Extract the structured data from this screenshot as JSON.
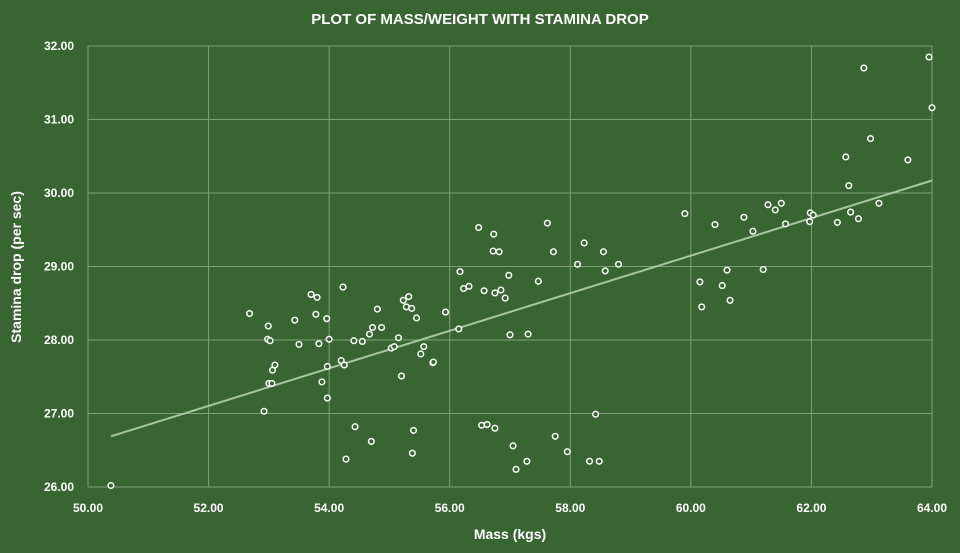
{
  "chart_data": {
    "type": "scatter",
    "title": "PLOT OF MASS/WEIGHT WITH STAMINA DROP",
    "xlabel": "Mass (kgs)",
    "ylabel": "Stamina drop (per sec)",
    "xlim": [
      50,
      64
    ],
    "ylim": [
      26,
      32
    ],
    "x_ticks": [
      "50.00",
      "52.00",
      "54.00",
      "56.00",
      "58.00",
      "60.00",
      "62.00",
      "64.00"
    ],
    "y_ticks": [
      "26.00",
      "27.00",
      "28.00",
      "29.00",
      "30.00",
      "31.00",
      "32.00"
    ],
    "grid": true,
    "legend": "none",
    "trendline": {
      "type": "linear",
      "start": [
        50.38,
        26.69
      ],
      "end": [
        64.0,
        30.17
      ]
    },
    "points": [
      [
        50.38,
        26.02
      ],
      [
        52.68,
        28.36
      ],
      [
        52.92,
        27.03
      ],
      [
        52.98,
        28.01
      ],
      [
        52.99,
        28.19
      ],
      [
        53.0,
        27.41
      ],
      [
        53.02,
        27.99
      ],
      [
        53.05,
        27.41
      ],
      [
        53.06,
        27.59
      ],
      [
        53.1,
        27.66
      ],
      [
        53.43,
        28.27
      ],
      [
        53.5,
        27.94
      ],
      [
        53.7,
        28.62
      ],
      [
        53.78,
        28.35
      ],
      [
        53.8,
        28.58
      ],
      [
        53.83,
        27.95
      ],
      [
        53.88,
        27.43
      ],
      [
        53.96,
        28.29
      ],
      [
        53.97,
        27.64
      ],
      [
        53.97,
        27.21
      ],
      [
        54.0,
        28.01
      ],
      [
        54.2,
        27.72
      ],
      [
        54.23,
        28.72
      ],
      [
        54.25,
        27.66
      ],
      [
        54.28,
        26.38
      ],
      [
        54.41,
        27.99
      ],
      [
        54.43,
        26.82
      ],
      [
        54.55,
        27.98
      ],
      [
        54.67,
        28.08
      ],
      [
        54.7,
        26.62
      ],
      [
        54.72,
        28.17
      ],
      [
        54.8,
        28.42
      ],
      [
        54.87,
        28.17
      ],
      [
        55.03,
        27.89
      ],
      [
        55.08,
        27.91
      ],
      [
        55.15,
        28.03
      ],
      [
        55.2,
        27.51
      ],
      [
        55.23,
        28.54
      ],
      [
        55.28,
        28.45
      ],
      [
        55.32,
        28.59
      ],
      [
        55.37,
        28.43
      ],
      [
        55.38,
        26.46
      ],
      [
        55.4,
        26.77
      ],
      [
        55.45,
        28.3
      ],
      [
        55.52,
        27.81
      ],
      [
        55.57,
        27.91
      ],
      [
        55.72,
        27.69
      ],
      [
        55.73,
        27.7
      ],
      [
        55.93,
        28.38
      ],
      [
        56.15,
        28.15
      ],
      [
        56.17,
        28.93
      ],
      [
        56.23,
        28.7
      ],
      [
        56.32,
        28.73
      ],
      [
        56.48,
        29.53
      ],
      [
        56.53,
        26.84
      ],
      [
        56.57,
        28.67
      ],
      [
        56.62,
        26.85
      ],
      [
        56.72,
        29.21
      ],
      [
        56.73,
        29.44
      ],
      [
        56.75,
        26.8
      ],
      [
        56.75,
        28.64
      ],
      [
        56.82,
        29.2
      ],
      [
        56.85,
        28.68
      ],
      [
        56.92,
        28.57
      ],
      [
        56.98,
        28.88
      ],
      [
        57.0,
        28.07
      ],
      [
        57.05,
        26.56
      ],
      [
        57.1,
        26.24
      ],
      [
        57.28,
        26.35
      ],
      [
        57.3,
        28.08
      ],
      [
        57.47,
        28.8
      ],
      [
        57.62,
        29.59
      ],
      [
        57.72,
        29.2
      ],
      [
        57.75,
        26.69
      ],
      [
        57.95,
        26.48
      ],
      [
        58.12,
        29.03
      ],
      [
        58.23,
        29.32
      ],
      [
        58.32,
        26.35
      ],
      [
        58.42,
        26.99
      ],
      [
        58.48,
        26.35
      ],
      [
        58.55,
        29.2
      ],
      [
        58.58,
        28.94
      ],
      [
        58.8,
        29.03
      ],
      [
        59.9,
        29.72
      ],
      [
        60.15,
        28.79
      ],
      [
        60.18,
        28.45
      ],
      [
        60.4,
        29.57
      ],
      [
        60.52,
        28.74
      ],
      [
        60.6,
        28.95
      ],
      [
        60.65,
        28.54
      ],
      [
        60.88,
        29.67
      ],
      [
        61.03,
        29.48
      ],
      [
        61.2,
        28.96
      ],
      [
        61.28,
        29.84
      ],
      [
        61.4,
        29.77
      ],
      [
        61.5,
        29.86
      ],
      [
        61.57,
        29.58
      ],
      [
        61.97,
        29.61
      ],
      [
        61.98,
        29.73
      ],
      [
        62.03,
        29.7
      ],
      [
        62.43,
        29.6
      ],
      [
        62.57,
        30.49
      ],
      [
        62.62,
        30.1
      ],
      [
        62.65,
        29.74
      ],
      [
        62.78,
        29.65
      ],
      [
        62.87,
        31.7
      ],
      [
        62.98,
        30.74
      ],
      [
        63.12,
        29.86
      ],
      [
        63.6,
        30.45
      ],
      [
        63.95,
        31.85
      ],
      [
        64.0,
        31.16
      ]
    ]
  },
  "colors": {
    "background": "#386532",
    "text": "#ffffff",
    "gridline": "#7f9f79",
    "marker_stroke": "#ffffff",
    "trendline": "#a9c4a3"
  }
}
